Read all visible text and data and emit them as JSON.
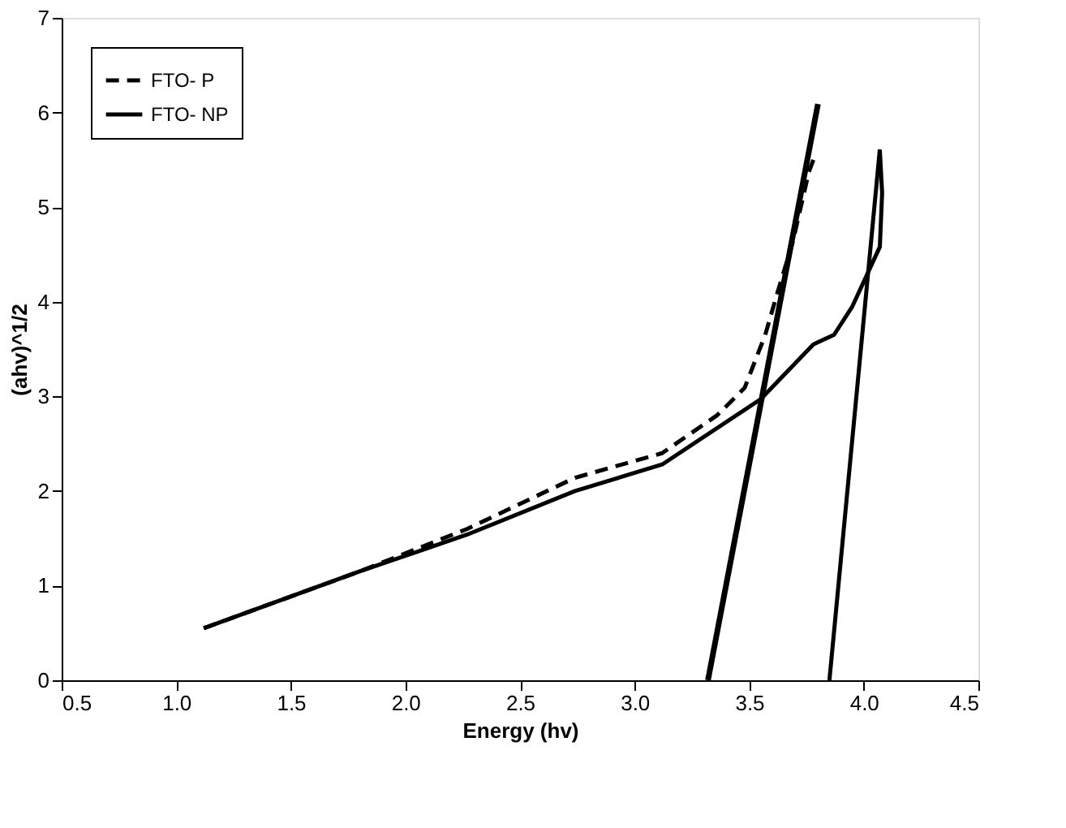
{
  "chart_data": {
    "type": "line",
    "xlabel": "Energy (hv)",
    "ylabel": "(ahv)^1/2",
    "xlim": [
      0.5,
      4.5
    ],
    "xticks": [
      0.5,
      {
        "value": 1,
        "label": "1.0"
      },
      1.5,
      {
        "value": 2,
        "label": "2.0"
      },
      2.5,
      {
        "value": 3,
        "label": "3.0"
      },
      3.5,
      {
        "value": 4,
        "label": "4.0"
      },
      4.5
    ],
    "ylim": [
      0,
      7
    ],
    "yticks": [
      0,
      1,
      2,
      3,
      4,
      5,
      6,
      7
    ],
    "grid": false,
    "legend": "top left",
    "marker": "none",
    "series": [
      {
        "name": "FTO- P",
        "color": "#000000",
        "line_style": "dashed",
        "x": [
          1.12,
          1.8,
          2.27,
          2.74,
          3.12,
          3.36,
          3.48,
          3.57,
          3.62,
          3.69,
          3.76,
          3.78
        ],
        "values": [
          0.55,
          1.15,
          1.6,
          2.14,
          2.4,
          2.8,
          3.09,
          3.65,
          4.07,
          4.63,
          5.37,
          5.5
        ]
      },
      {
        "name": "FTO- NP",
        "color": "#000000",
        "line_style": "solid",
        "x": [
          1.12,
          1.8,
          2.27,
          2.74,
          3.12,
          3.55,
          3.78,
          3.87,
          3.95,
          4.07,
          4.08,
          4.07
        ],
        "values": [
          0.55,
          1.15,
          1.54,
          2.0,
          2.28,
          2.97,
          3.55,
          3.65,
          3.95,
          4.58,
          5.15,
          5.6
        ]
      },
      {
        "type": "line",
        "color": "#000000",
        "line_style": "solid",
        "x": [
          3.32,
          3.8
        ],
        "values": [
          0,
          6.09
        ]
      },
      {
        "type": "line",
        "color": "#000000",
        "line_style": "solid",
        "x": [
          3.85,
          4.07
        ],
        "values": [
          0,
          5.61
        ]
      }
    ]
  }
}
